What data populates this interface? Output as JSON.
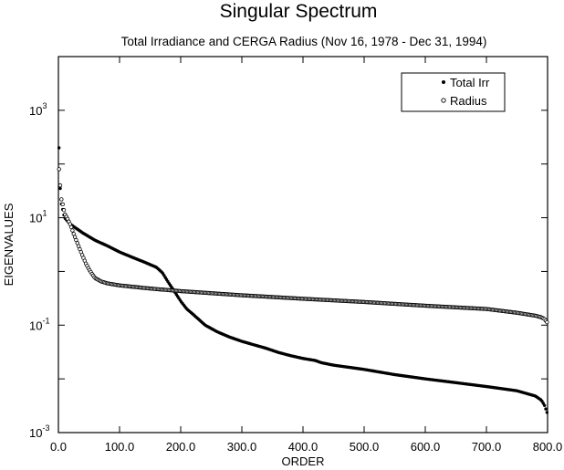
{
  "chart_data": {
    "type": "scatter",
    "title": "Singular Spectrum",
    "subtitle": "Total Irradiance and CERGA Radius (Nov 16, 1978 - Dec 31, 1994)",
    "xlabel": "ORDER",
    "ylabel": "EIGENVALUES",
    "xlim": [
      0,
      800
    ],
    "ylim": [
      0.001,
      10000
    ],
    "yscale": "log",
    "x_ticks": [
      "0.0",
      "100.0",
      "200.0",
      "300.0",
      "400.0",
      "500.0",
      "600.0",
      "700.0",
      "800.0"
    ],
    "y_ticks": [
      {
        "base": "10",
        "exp": "-3",
        "value": 0.001
      },
      {
        "base": "10",
        "exp": "-1",
        "value": 0.1
      },
      {
        "base": "10",
        "exp": "1",
        "value": 10
      },
      {
        "base": "10",
        "exp": "3",
        "value": 1000
      }
    ],
    "legend_position": "top-right",
    "series": [
      {
        "name": "Total Irr",
        "marker": "filled-circle",
        "x": [
          1,
          3,
          5,
          10,
          20,
          40,
          60,
          80,
          100,
          120,
          140,
          160,
          170,
          180,
          190,
          200,
          210,
          220,
          240,
          260,
          280,
          300,
          320,
          340,
          360,
          380,
          400,
          420,
          430,
          450,
          500,
          550,
          600,
          650,
          700,
          750,
          780,
          790,
          795,
          800
        ],
        "y": [
          200,
          35,
          18,
          10,
          7.5,
          5.2,
          3.8,
          3.0,
          2.3,
          1.85,
          1.5,
          1.2,
          0.95,
          0.62,
          0.42,
          0.28,
          0.2,
          0.16,
          0.1,
          0.075,
          0.06,
          0.05,
          0.043,
          0.037,
          0.031,
          0.027,
          0.024,
          0.022,
          0.02,
          0.018,
          0.015,
          0.012,
          0.01,
          0.0085,
          0.0072,
          0.006,
          0.0048,
          0.004,
          0.0032,
          0.0022
        ]
      },
      {
        "name": "Radius",
        "marker": "open-circle",
        "x": [
          1,
          3,
          5,
          8,
          10,
          15,
          20,
          25,
          30,
          35,
          40,
          45,
          50,
          55,
          60,
          70,
          80,
          100,
          150,
          200,
          300,
          400,
          500,
          600,
          700,
          750,
          780,
          790,
          795,
          800
        ],
        "y": [
          80,
          40,
          22,
          16,
          12,
          9.5,
          7.2,
          5,
          3.6,
          2.6,
          1.9,
          1.4,
          1.1,
          0.9,
          0.75,
          0.65,
          0.6,
          0.55,
          0.48,
          0.43,
          0.36,
          0.31,
          0.27,
          0.23,
          0.2,
          0.17,
          0.15,
          0.14,
          0.13,
          0.11
        ]
      }
    ]
  }
}
